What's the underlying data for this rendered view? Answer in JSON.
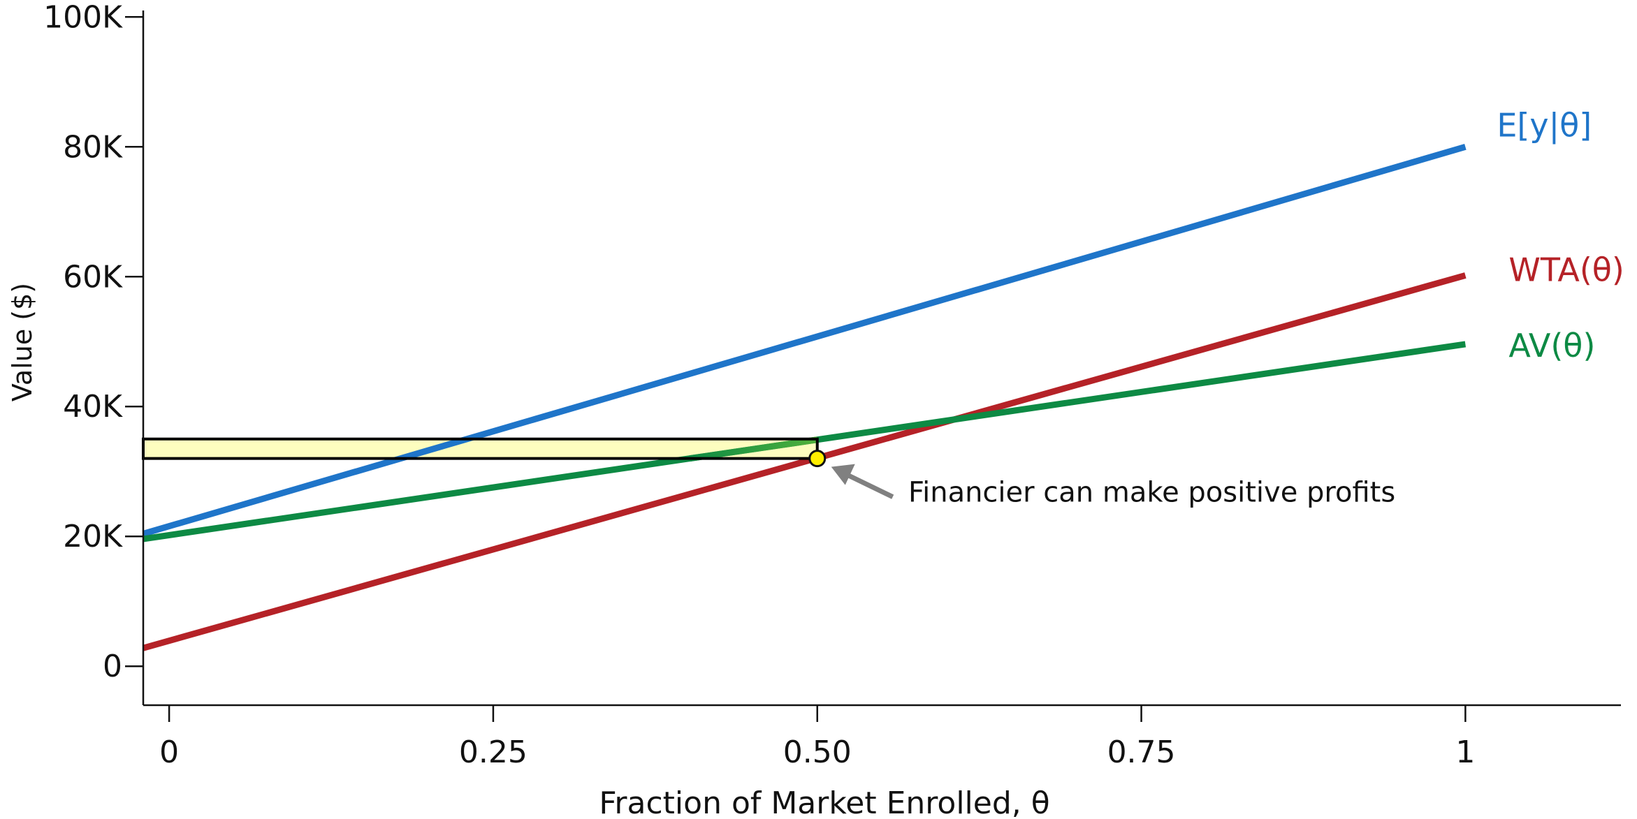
{
  "chart_data": {
    "type": "line",
    "title": "",
    "xlabel": "Fraction of Market Enrolled, θ",
    "ylabel": "Value ($)",
    "xlim": [
      -0.02,
      1.12
    ],
    "ylim": [
      -6000,
      101000
    ],
    "x_ticks": [
      {
        "value": 0,
        "label": "0"
      },
      {
        "value": 0.25,
        "label": "0.25"
      },
      {
        "value": 0.5,
        "label": "0.50"
      },
      {
        "value": 0.75,
        "label": "0.75"
      },
      {
        "value": 1,
        "label": "1"
      }
    ],
    "y_ticks": [
      {
        "value": 0,
        "label": "0"
      },
      {
        "value": 20000,
        "label": "20K"
      },
      {
        "value": 40000,
        "label": "40K"
      },
      {
        "value": 60000,
        "label": "60K"
      },
      {
        "value": 80000,
        "label": "80K"
      },
      {
        "value": 100000,
        "label": "100K"
      }
    ],
    "grid": false,
    "series": [
      {
        "name": "E[y|θ]",
        "color": "#1f75c9",
        "x": [
          -0.02,
          1.0
        ],
        "y": [
          20400,
          80000
        ]
      },
      {
        "name": "WTA(θ)",
        "color": "#b52227",
        "x": [
          -0.02,
          1.0
        ],
        "y": [
          2800,
          60200
        ]
      },
      {
        "name": "AV(θ)",
        "color": "#0d8a44",
        "x": [
          -0.02,
          1.0
        ],
        "y": [
          19600,
          49600
        ]
      }
    ],
    "highlight_region": {
      "x": [
        -0.02,
        0.5
      ],
      "y": [
        32000,
        35000
      ],
      "fill": "#fdfdbf",
      "stroke": "#000000"
    },
    "marker": {
      "x": 0.5,
      "y": 32000,
      "color": "#ffee00"
    },
    "annotation": {
      "text": "Financier can make positive profits",
      "x": 0.5,
      "y": 32000,
      "arrow_color": "#808080"
    }
  }
}
